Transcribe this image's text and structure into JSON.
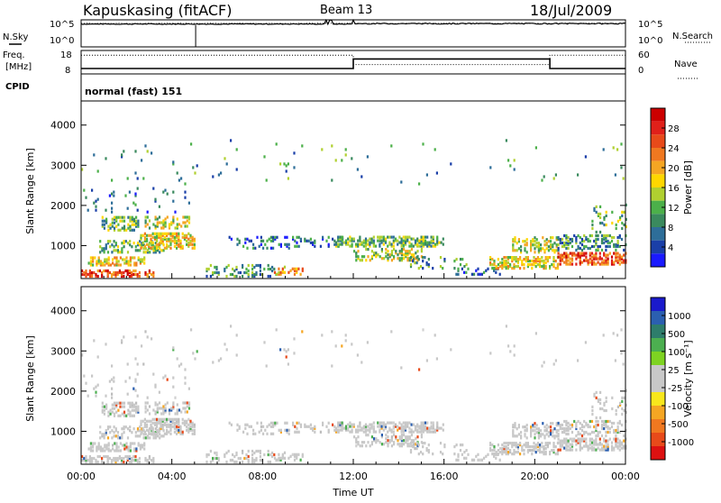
{
  "header": {
    "station": "Kapuskasing (fitACF)",
    "beam": "Beam 13",
    "date": "18/Jul/2009"
  },
  "nsky_panel": {
    "left_label": "N.Sky",
    "right_label": "N.Search",
    "y_ticks": [
      "10^5",
      "10^0"
    ]
  },
  "freq_panel": {
    "left_label_line1": "Freq.",
    "left_label_line2": "[MHz]",
    "left_ticks": [
      "18",
      "8"
    ],
    "right_ticks": [
      "60",
      "0"
    ],
    "right_label": "Nave",
    "cpid_label": "CPID",
    "mode_text": "normal (fast) 151"
  },
  "chart_data": [
    {
      "type": "line",
      "name": "Sky noise / search noise",
      "y_scale": "log",
      "ylim": [
        "10^0",
        "10^5"
      ],
      "series": [
        {
          "line_style": "solid",
          "level": "near 10^5 throughout, spikes near 10:45 and 12:00"
        },
        {
          "line_style": "dotted",
          "level": "near 10^5 throughout"
        }
      ]
    },
    {
      "type": "line",
      "ylim_left": [
        8,
        18
      ],
      "ylim_right": [
        0,
        60
      ],
      "series": [
        {
          "line_style": "solid",
          "x": [
            "00:00",
            "12:00",
            "12:00",
            "20:40",
            "20:40",
            "24:00"
          ],
          "y": [
            10.3,
            10.3,
            14.4,
            14.4,
            10.3,
            10.3
          ]
        },
        {
          "line_style": "dotted",
          "x": [
            "00:00",
            "12:00",
            "12:00",
            "20:40",
            "20:40",
            "24:00"
          ],
          "y": [
            16,
            16,
            12,
            12,
            16,
            16
          ]
        }
      ]
    },
    {
      "type": "heatmap",
      "ylabel": "Slant Range [km]",
      "yticks": [
        1000,
        2000,
        3000,
        4000
      ],
      "ylim": [
        180,
        4600
      ],
      "xticks": [
        "00:00",
        "04:00",
        "08:00",
        "12:00",
        "16:00",
        "20:00",
        "00:00"
      ],
      "colorbar": {
        "label": "Power [dB]",
        "ticks": [
          "4",
          "8",
          "12",
          "16",
          "20",
          "24",
          "28"
        ],
        "colors": [
          "#1a1aff",
          "#1a3fa8",
          "#2e6e99",
          "#3a8a5e",
          "#4cb04a",
          "#b0d030",
          "#ffd700",
          "#f5a623",
          "#f07820",
          "#e84a1a",
          "#e0201a",
          "#cc0000"
        ]
      }
    },
    {
      "type": "heatmap",
      "ylabel": "Slant Range [km]",
      "yticks": [
        1000,
        2000,
        3000,
        4000
      ],
      "ylim": [
        180,
        4600
      ],
      "xticks": [
        "00:00",
        "04:00",
        "08:00",
        "12:00",
        "16:00",
        "20:00",
        "00:00"
      ],
      "colorbar": {
        "label": "Velocity [m s⁻¹]",
        "ticks": [
          "1000",
          "500",
          "100",
          "25",
          "-25",
          "-100",
          "-500",
          "-1000"
        ],
        "colors": [
          "#1a1acc",
          "#2b5fb0",
          "#2e7d6b",
          "#4caf50",
          "#7ed321",
          "#c8c8c8",
          "#c8c8c8",
          "#f8e71c",
          "#f5a623",
          "#f07820",
          "#e84a1a",
          "#dd1111"
        ]
      },
      "xlabel": "Time UT"
    }
  ]
}
